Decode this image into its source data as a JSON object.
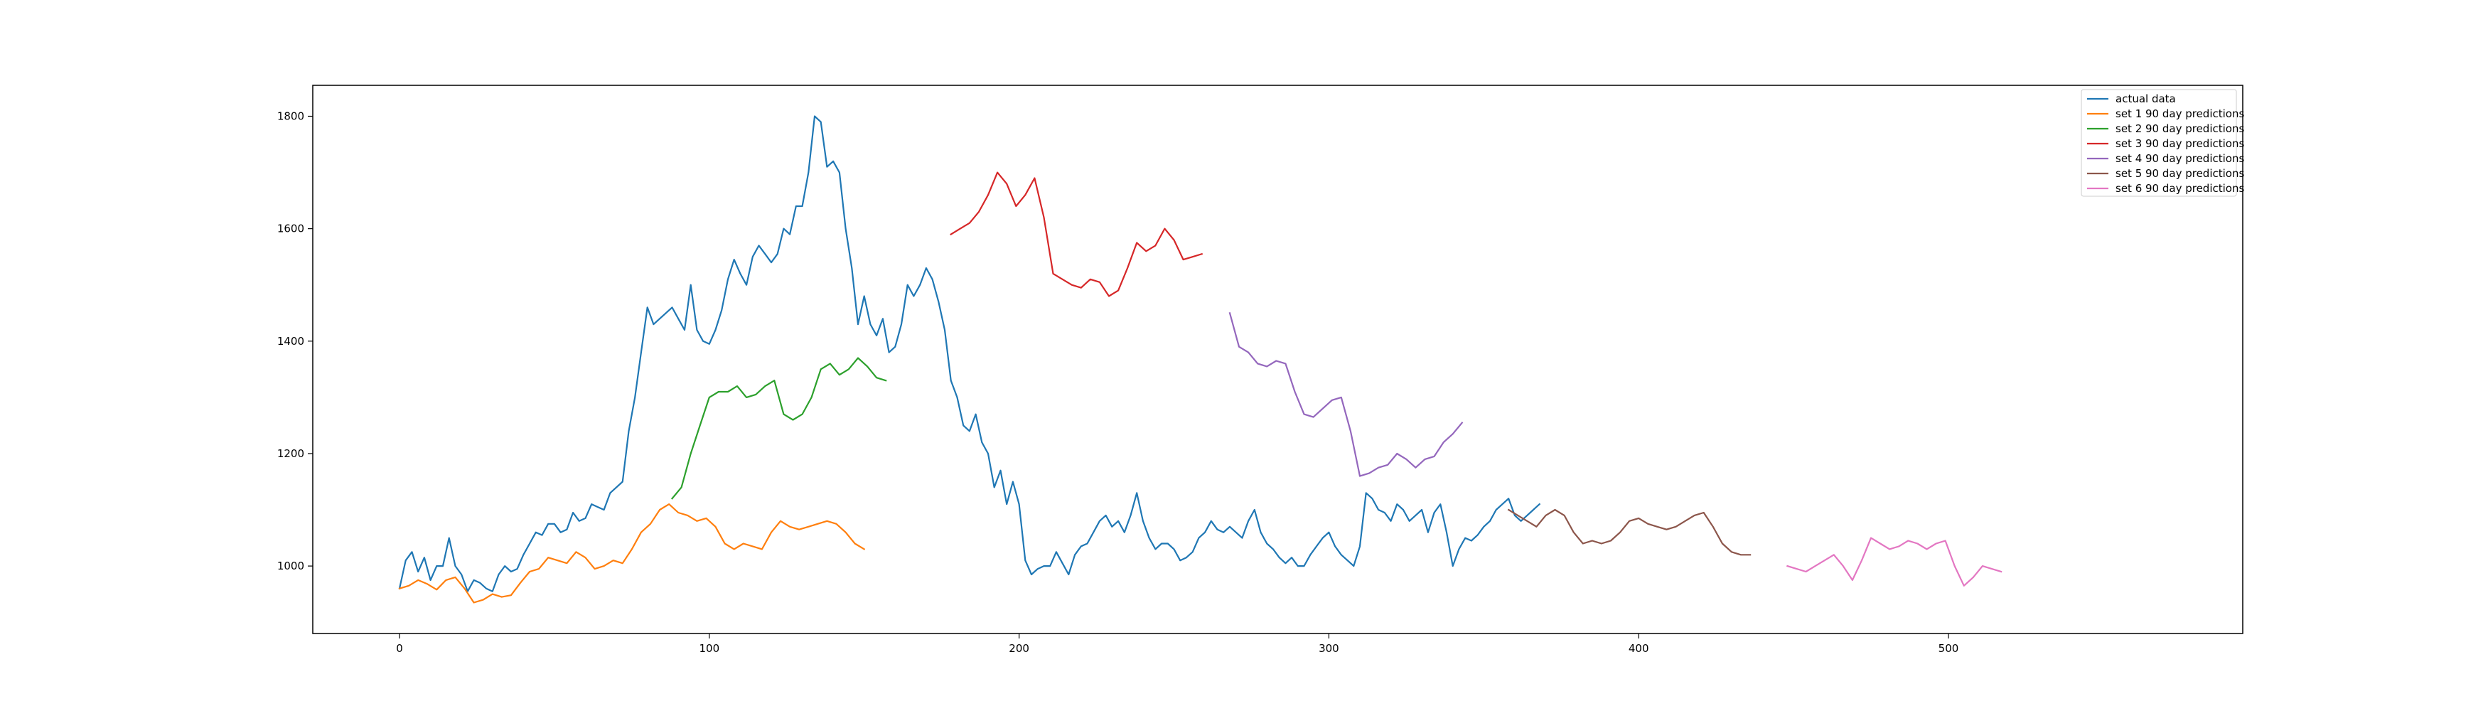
{
  "chart_data": {
    "type": "line",
    "title": "",
    "xlabel": "",
    "ylabel": "",
    "xlim": [
      -28,
      595
    ],
    "ylim": [
      880,
      1855
    ],
    "xticks": [
      0,
      100,
      200,
      300,
      400,
      500
    ],
    "yticks": [
      1000,
      1200,
      1400,
      1600,
      1800
    ],
    "grid": false,
    "legend": {
      "position": "upper right"
    },
    "series": [
      {
        "name": "actual data",
        "color": "#1f77b4",
        "x_start": 0,
        "step": 2,
        "values": [
          960,
          1010,
          1025,
          990,
          1015,
          975,
          1000,
          1000,
          1050,
          1000,
          985,
          955,
          975,
          970,
          960,
          955,
          985,
          1000,
          990,
          995,
          1020,
          1040,
          1060,
          1055,
          1075,
          1075,
          1060,
          1065,
          1095,
          1080,
          1085,
          1110,
          1105,
          1100,
          1130,
          1140,
          1150,
          1240,
          1300,
          1380,
          1460,
          1430,
          1440,
          1450,
          1460,
          1440,
          1420,
          1500,
          1420,
          1400,
          1395,
          1420,
          1455,
          1510,
          1545,
          1520,
          1500,
          1550,
          1570,
          1555,
          1540,
          1555,
          1600,
          1590,
          1640,
          1640,
          1700,
          1800,
          1790,
          1710,
          1720,
          1700,
          1600,
          1530,
          1430,
          1480,
          1430,
          1410,
          1440,
          1380,
          1390,
          1430,
          1500,
          1480,
          1500,
          1530,
          1510,
          1470,
          1420,
          1330,
          1300,
          1250,
          1240,
          1270,
          1220,
          1200,
          1140,
          1170,
          1110,
          1150,
          1110,
          1010,
          985,
          995,
          1000,
          1000,
          1025,
          1005,
          985,
          1020,
          1035,
          1040,
          1060,
          1080,
          1090,
          1070,
          1080,
          1060,
          1090,
          1130,
          1080,
          1050,
          1030,
          1040,
          1040,
          1030,
          1010,
          1015,
          1025,
          1050,
          1060,
          1080,
          1065,
          1060,
          1070,
          1060,
          1050,
          1080,
          1100,
          1060,
          1040,
          1030,
          1015,
          1005,
          1015,
          1000,
          1000,
          1020,
          1035,
          1050,
          1060,
          1035,
          1020,
          1010,
          1000,
          1035,
          1130,
          1120,
          1100,
          1095,
          1080,
          1110,
          1100,
          1080,
          1090,
          1100,
          1060,
          1095,
          1110,
          1060,
          1000,
          1030,
          1050,
          1045,
          1055,
          1070,
          1080,
          1100,
          1110,
          1120,
          1090,
          1080,
          1090,
          1100,
          1110
        ]
      },
      {
        "name": "set 1 90 day predictions",
        "color": "#ff7f0e",
        "x_start": 0,
        "step": 3,
        "values": [
          960,
          965,
          975,
          968,
          958,
          975,
          980,
          960,
          935,
          940,
          950,
          945,
          948,
          970,
          990,
          995,
          1015,
          1010,
          1005,
          1025,
          1015,
          995,
          1000,
          1010,
          1005,
          1030,
          1060,
          1075,
          1100,
          1110,
          1095,
          1090,
          1080,
          1085,
          1070,
          1040,
          1030,
          1040,
          1035,
          1030,
          1060,
          1080,
          1070,
          1065,
          1070,
          1075,
          1080,
          1075,
          1060,
          1040,
          1030
        ]
      },
      {
        "name": "set 2 90 day predictions",
        "color": "#2ca02c",
        "x_start": 88,
        "step": 3,
        "values": [
          1120,
          1140,
          1200,
          1250,
          1300,
          1310,
          1310,
          1320,
          1300,
          1305,
          1320,
          1330,
          1270,
          1260,
          1270,
          1300,
          1350,
          1360,
          1340,
          1350,
          1370,
          1355,
          1335,
          1330
        ]
      },
      {
        "name": "set 3 90 day predictions",
        "color": "#d62728",
        "x_start": 178,
        "step": 3,
        "values": [
          1590,
          1600,
          1610,
          1630,
          1660,
          1700,
          1680,
          1640,
          1660,
          1690,
          1620,
          1520,
          1510,
          1500,
          1495,
          1510,
          1505,
          1480,
          1490,
          1530,
          1575,
          1560,
          1570,
          1600,
          1580,
          1545,
          1550,
          1555
        ]
      },
      {
        "name": "set 4 90 day predictions",
        "color": "#9467bd",
        "x_start": 268,
        "step": 3,
        "values": [
          1450,
          1390,
          1380,
          1360,
          1355,
          1365,
          1360,
          1310,
          1270,
          1265,
          1280,
          1295,
          1300,
          1240,
          1160,
          1165,
          1175,
          1180,
          1200,
          1190,
          1175,
          1190,
          1195,
          1220,
          1235,
          1255
        ]
      },
      {
        "name": "set 5 90 day predictions",
        "color": "#8c564b",
        "x_start": 358,
        "step": 3,
        "values": [
          1100,
          1090,
          1080,
          1070,
          1090,
          1100,
          1090,
          1060,
          1040,
          1045,
          1040,
          1045,
          1060,
          1080,
          1085,
          1075,
          1070,
          1065,
          1070,
          1080,
          1090,
          1095,
          1070,
          1040,
          1025,
          1020,
          1020
        ]
      },
      {
        "name": "set 6 90 day predictions",
        "color": "#e377c2",
        "x_start": 448,
        "step": 3,
        "values": [
          1000,
          995,
          990,
          1000,
          1010,
          1020,
          1000,
          975,
          1010,
          1050,
          1040,
          1030,
          1035,
          1045,
          1040,
          1030,
          1040,
          1045,
          1000,
          965,
          980,
          1000,
          995,
          990
        ]
      }
    ]
  }
}
